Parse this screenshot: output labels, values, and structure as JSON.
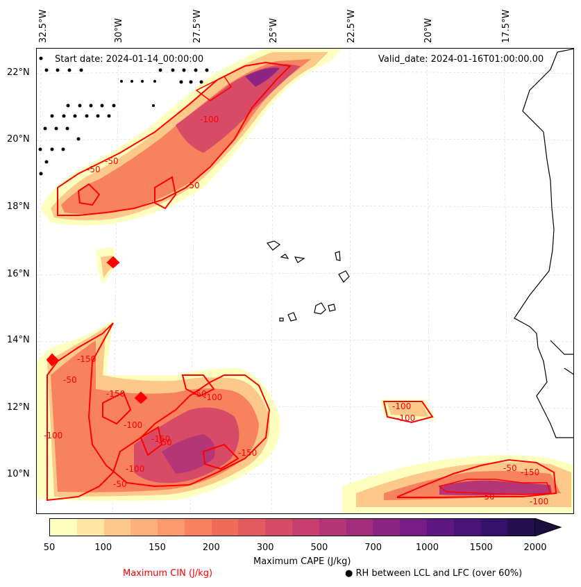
{
  "longitude_labels": [
    "32.5°W",
    "30°W",
    "27.5°W",
    "25°W",
    "22.5°W",
    "20°W",
    "17.5°W"
  ],
  "latitude_labels": [
    "22°N",
    "20°N",
    "18°N",
    "16°N",
    "14°N",
    "12°N",
    "10°N"
  ],
  "start_date": "Start date: 2024-01-14_00:00:00",
  "valid_date": "Valid_date: 2024-01-16T01:00:00.00",
  "contour_labels": [
    "-50",
    "-50",
    "-100",
    "-50",
    "-150",
    "-50",
    "-100",
    "-150",
    "-100",
    "-50",
    "-100",
    "-50",
    "-150",
    "-100",
    "-50",
    "-150",
    "-100",
    "-100",
    "-50",
    "-150",
    "-50",
    "-100"
  ],
  "colorbar": {
    "ticks": [
      "50",
      "100",
      "150",
      "200",
      "300",
      "500",
      "700",
      "1000",
      "1500",
      "2000"
    ],
    "colors": [
      "#fefebe",
      "#fee7a1",
      "#fdc98a",
      "#fdb07a",
      "#fc9a6c",
      "#f8825e",
      "#f06c5a",
      "#e45a5e",
      "#d84b66",
      "#c73f6f",
      "#b53677",
      "#a12d7c",
      "#8c2581",
      "#761e83",
      "#5f1883",
      "#491479",
      "#35126a",
      "#24104f"
    ],
    "arrow_color": "#1b0f3f",
    "label": "Maximum CAPE (J/kg)"
  },
  "legend": {
    "cin_label": "Maximum CIN (J/kg)",
    "cin_color": "#ff0000",
    "rh_label": "● RH between LCL and LFC (over 60%)"
  }
}
